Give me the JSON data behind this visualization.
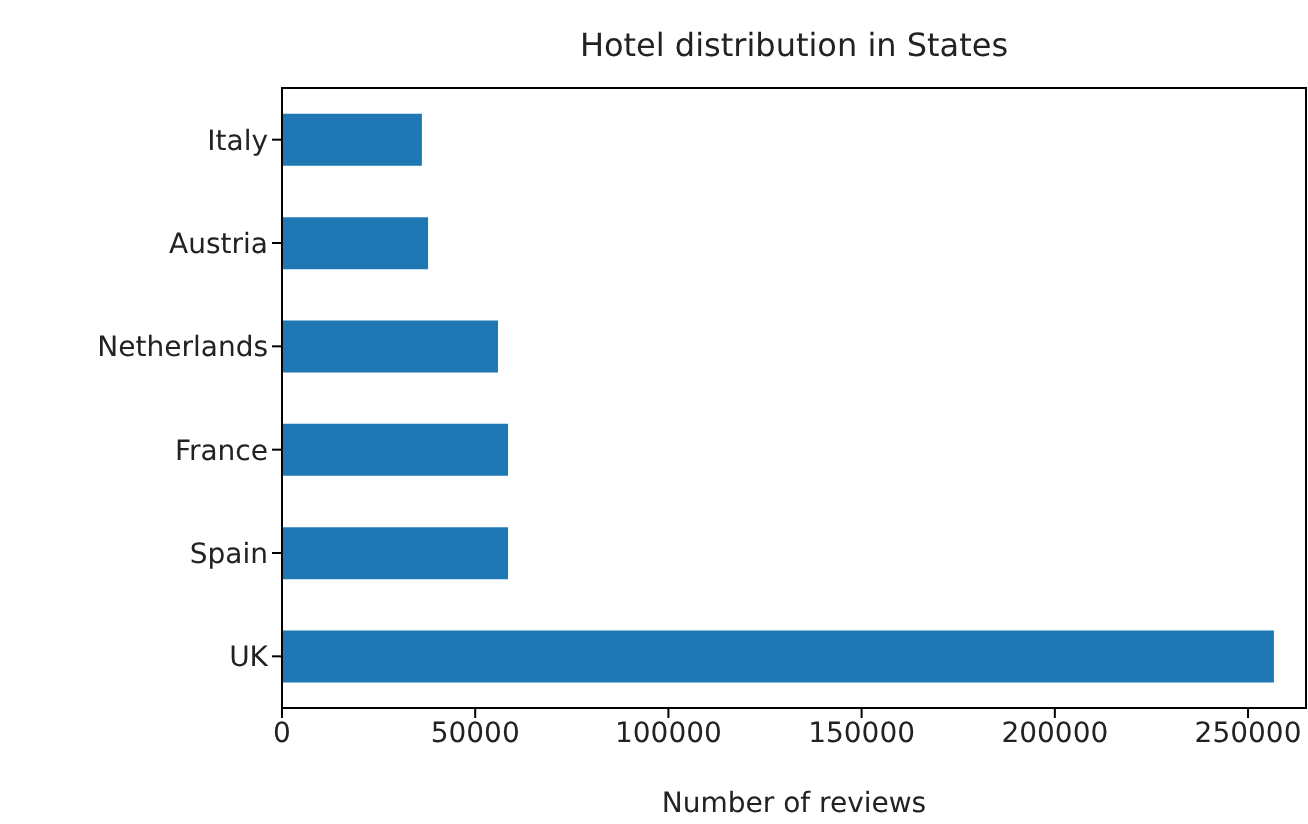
{
  "chart_data": {
    "type": "bar",
    "orientation": "horizontal",
    "title": "Hotel distribution in States",
    "xlabel": "Number of reviews",
    "categories": [
      "Italy",
      "Austria",
      "Netherlands",
      "France",
      "Spain",
      "UK"
    ],
    "values": [
      36200,
      37800,
      55900,
      58500,
      58500,
      256700
    ],
    "color": "#1f77b4",
    "xlim": [
      0,
      265000
    ],
    "xticks": [
      0,
      50000,
      100000,
      150000,
      200000,
      250000
    ]
  }
}
